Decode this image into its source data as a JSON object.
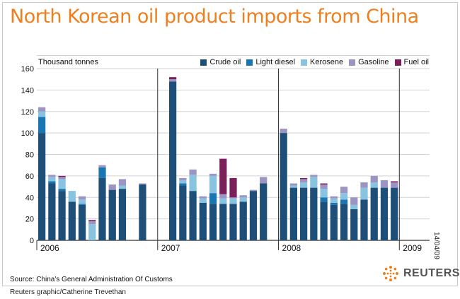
{
  "header": {
    "title": "North Korean oil product imports from China"
  },
  "footer": {
    "source": "Source: China's General Administration Of Customs",
    "credit": "Reuters graphic/Catherine Trevethan",
    "datestamp": "14/04/09",
    "brand": "REUTERS"
  },
  "colors": {
    "title": "#ee7f1f",
    "crude": "#1d4f79",
    "diesel": "#1a75b3",
    "kerosene": "#88c3e0",
    "gasoline": "#9c95c4",
    "fuel": "#7b1f5b"
  },
  "icons": {
    "brand_logo": "reuters-dots-logo"
  },
  "chart_data": {
    "type": "bar",
    "stacked": true,
    "ylabel": "Thousand tonnes",
    "ylim": [
      0,
      160
    ],
    "yticks": [
      0,
      20,
      40,
      60,
      80,
      100,
      120,
      140,
      160
    ],
    "grid": true,
    "legend_position": "top-right",
    "year_labels": [
      {
        "label": "2006",
        "index": 0
      },
      {
        "label": "2007",
        "index": 12
      },
      {
        "label": "2008",
        "index": 24
      },
      {
        "label": "2009",
        "index": 36
      }
    ],
    "categories": [
      "2006-01",
      "2006-02",
      "2006-03",
      "2006-04",
      "2006-05",
      "2006-06",
      "2006-07",
      "2006-08",
      "2006-09",
      "2006-10",
      "2006-11",
      "2006-12",
      "2007-01",
      "2007-02",
      "2007-03",
      "2007-04",
      "2007-05",
      "2007-06",
      "2007-07",
      "2007-08",
      "2007-09",
      "2007-10",
      "2007-11",
      "2007-12",
      "2008-01",
      "2008-02",
      "2008-03",
      "2008-04",
      "2008-05",
      "2008-06",
      "2008-07",
      "2008-08",
      "2008-09",
      "2008-10",
      "2008-11",
      "2008-12",
      "2009-01",
      "2009-02",
      "2009-03"
    ],
    "series": [
      {
        "name": "Crude oil",
        "key": "crude",
        "values": [
          100,
          53,
          46,
          36,
          33,
          0,
          58,
          47,
          48,
          0,
          52,
          0,
          0,
          148,
          51,
          46,
          35,
          34,
          34,
          34,
          36,
          46,
          53,
          0,
          100,
          49,
          49,
          49,
          36,
          33,
          34,
          29,
          38,
          49,
          49,
          49,
          0,
          0,
          0
        ]
      },
      {
        "name": "Light diesel",
        "key": "diesel",
        "values": [
          15,
          2,
          2,
          0,
          1,
          0,
          10,
          0,
          0,
          0,
          0,
          0,
          0,
          0,
          2,
          0,
          0,
          10,
          0,
          0,
          0,
          0,
          0,
          0,
          0,
          0,
          0,
          0,
          4,
          2,
          4,
          0,
          0,
          0,
          0,
          0,
          0,
          0,
          0
        ]
      },
      {
        "name": "Kerosene",
        "key": "kerosene",
        "values": [
          5,
          4,
          9,
          10,
          4,
          15,
          0,
          0,
          3,
          0,
          0,
          0,
          0,
          0,
          3,
          15,
          4,
          16,
          5,
          5,
          4,
          0,
          0,
          0,
          0,
          2,
          5,
          10,
          8,
          4,
          6,
          4,
          11,
          5,
          0,
          0,
          0,
          0,
          0
        ]
      },
      {
        "name": "Gasoline",
        "key": "gasoline",
        "values": [
          4,
          2,
          2,
          0,
          3,
          3,
          2,
          5,
          6,
          0,
          1,
          0,
          0,
          2,
          2,
          5,
          2,
          2,
          4,
          1,
          2,
          1,
          6,
          0,
          4,
          2,
          3,
          2,
          4,
          2,
          6,
          7,
          5,
          6,
          7,
          5,
          0,
          0,
          0
        ]
      },
      {
        "name": "Fuel oil",
        "key": "fuel",
        "values": [
          0,
          0,
          1,
          0,
          0,
          1,
          0,
          0,
          0,
          0,
          0,
          0,
          0,
          2,
          0,
          0,
          0,
          0,
          33,
          18,
          0,
          0,
          0,
          0,
          0,
          0,
          1,
          0,
          1,
          0,
          0,
          0,
          0,
          0,
          0,
          1,
          0,
          0,
          0
        ]
      }
    ]
  }
}
